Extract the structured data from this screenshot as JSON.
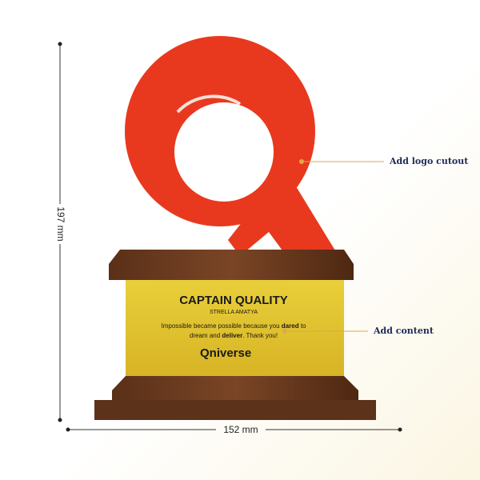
{
  "dimensions": {
    "height": "197 mm",
    "width": "152 mm"
  },
  "callouts": [
    "Add logo cutout",
    "Add content"
  ],
  "plaque": {
    "title": "CAPTAIN QUALITY",
    "name": "STRELLA AMATYA",
    "message": [
      [
        "Impossible became possible because you ",
        "dared",
        " to"
      ],
      [
        "dream and ",
        "deliver",
        ". Thank you!"
      ]
    ],
    "brand": "Qniverse"
  }
}
